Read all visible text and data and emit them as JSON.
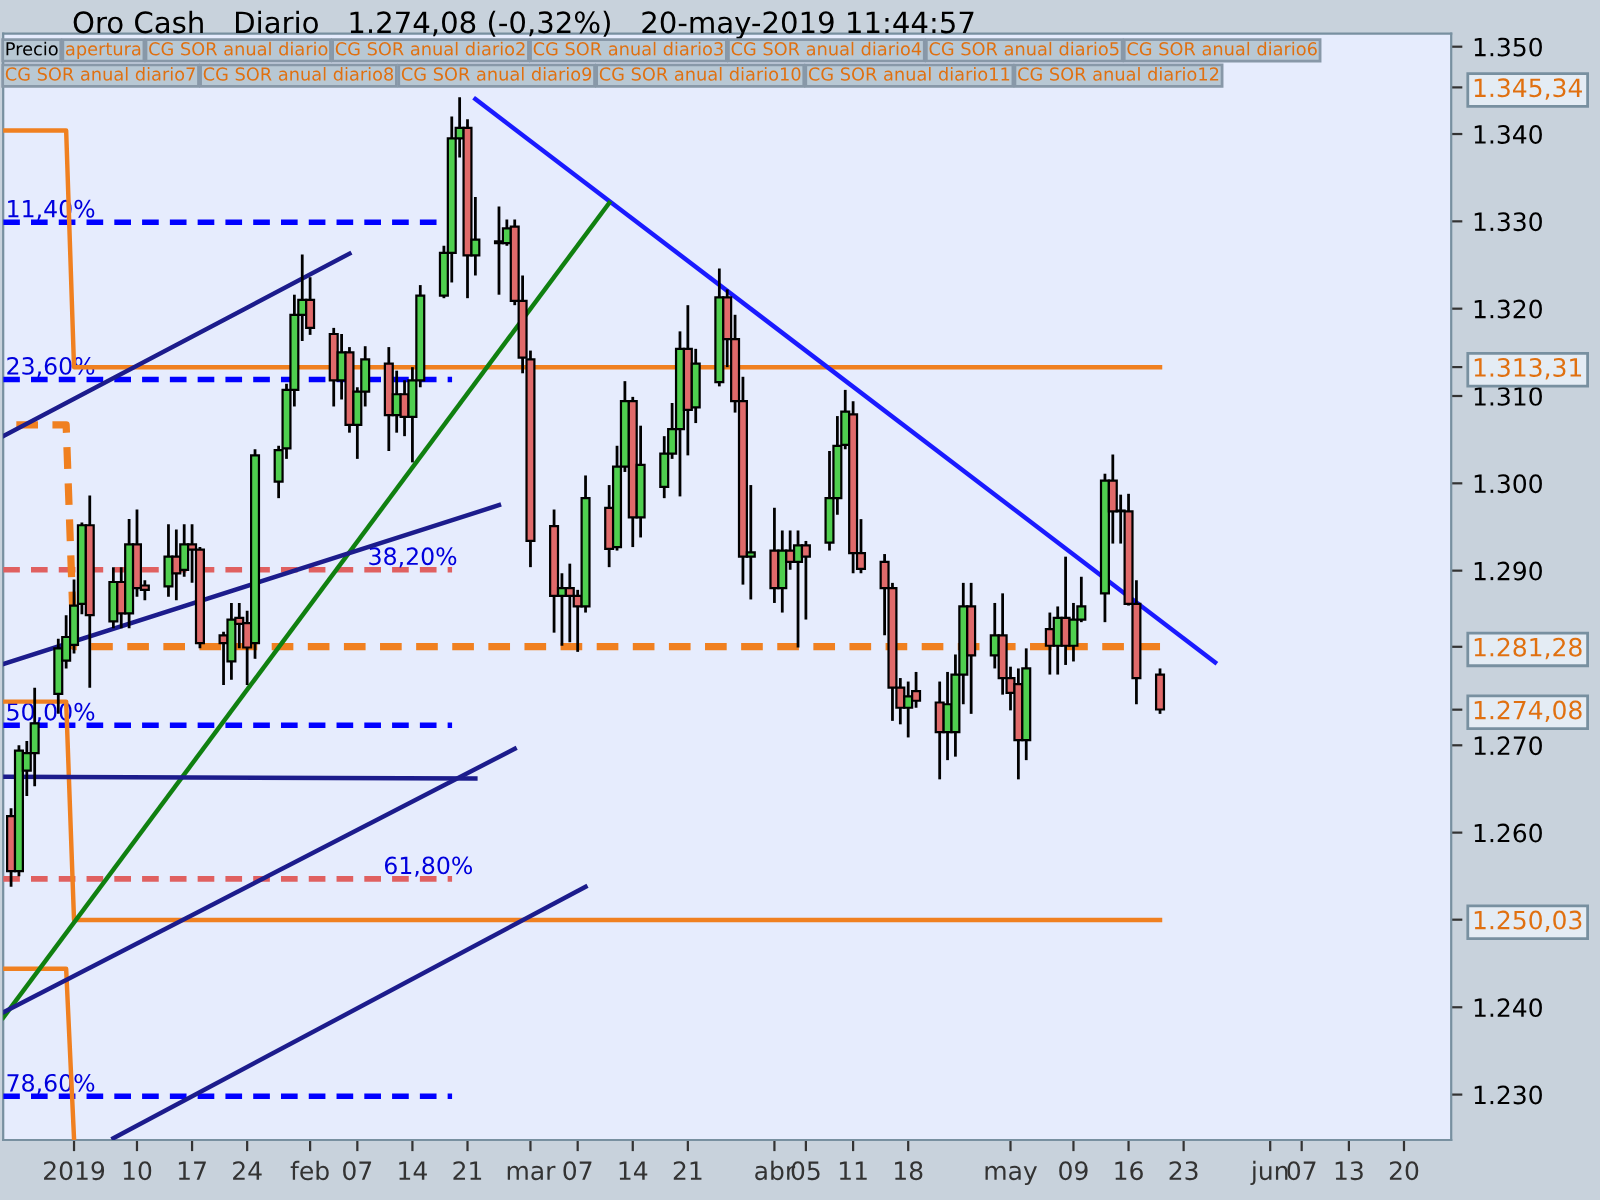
{
  "chart_data": {
    "type": "candlestick",
    "title": "Oro Cash   Diario   1.274,08 (-0,32%)   20-may-2019 11:44:57",
    "annotations": [
      "Precio",
      "apertura",
      "CG SOR anual diario",
      "CG SOR anual diario2",
      "CG SOR anual diario3",
      "CG SOR anual diario4",
      "CG SOR anual diario5",
      "CG SOR anual diario6",
      "CG SOR anual diario7",
      "CG SOR anual diario8",
      "CG SOR anual diario9",
      "CG SOR anual diario10",
      "CG SOR anual diario11",
      "CG SOR anual diario12",
      {
        "text": "11,40%",
        "x": "2018-12-24",
        "y": 1329.9
      },
      {
        "text": "23,60%",
        "x": "2018-12-24",
        "y": 1311.9
      },
      {
        "text": "38,20%",
        "x": "2019-02-08",
        "y": 1290.1
      },
      {
        "text": "50,00%",
        "x": "2018-12-24",
        "y": 1272.3
      },
      {
        "text": "61,80%",
        "x": "2019-02-10",
        "y": 1254.7
      },
      {
        "text": "78,60%",
        "x": "2018-12-24",
        "y": 1229.8
      }
    ],
    "xlim": [
      "2018-12-24",
      "2019-06-26"
    ],
    "xticks": [
      {
        "value": "2019-01-02",
        "label": "2019"
      },
      {
        "value": "2019-01-10",
        "label": "10"
      },
      {
        "value": "2019-01-17",
        "label": "17"
      },
      {
        "value": "2019-01-24",
        "label": "24"
      },
      {
        "value": "2019-02-01",
        "label": "feb"
      },
      {
        "value": "2019-02-07",
        "label": "07"
      },
      {
        "value": "2019-02-14",
        "label": "14"
      },
      {
        "value": "2019-02-21",
        "label": "21"
      },
      {
        "value": "2019-03-01",
        "label": "mar"
      },
      {
        "value": "2019-03-07",
        "label": "07"
      },
      {
        "value": "2019-03-14",
        "label": "14"
      },
      {
        "value": "2019-03-21",
        "label": "21"
      },
      {
        "value": "2019-04-01",
        "label": "abr"
      },
      {
        "value": "2019-04-05",
        "label": "05"
      },
      {
        "value": "2019-04-11",
        "label": "11"
      },
      {
        "value": "2019-04-18",
        "label": "18"
      },
      {
        "value": "2019-05-01",
        "label": "may"
      },
      {
        "value": "2019-05-09",
        "label": "09"
      },
      {
        "value": "2019-05-16",
        "label": "16"
      },
      {
        "value": "2019-05-23",
        "label": "23"
      },
      {
        "value": "2019-06-03",
        "label": "jun"
      },
      {
        "value": "2019-06-07",
        "label": "07"
      },
      {
        "value": "2019-06-13",
        "label": "13"
      },
      {
        "value": "2019-06-20",
        "label": "20"
      }
    ],
    "ylim": [
      1224.8,
      1351.5
    ],
    "yticks": [
      {
        "value": 1230,
        "label": "1.230"
      },
      {
        "value": 1240,
        "label": "1.240"
      },
      {
        "value": 1250.03,
        "label": "1.250,03"
      },
      {
        "value": 1260,
        "label": "1.260"
      },
      {
        "value": 1270,
        "label": "1.270"
      },
      {
        "value": 1274.08,
        "label": "1.274,08"
      },
      {
        "value": 1281.28,
        "label": "1.281,28"
      },
      {
        "value": 1290,
        "label": "1.290"
      },
      {
        "value": 1300,
        "label": "1.300"
      },
      {
        "value": 1310,
        "label": "1.310"
      },
      {
        "value": 1313.31,
        "label": "1.313,31"
      },
      {
        "value": 1320,
        "label": "1.320"
      },
      {
        "value": 1330,
        "label": "1.330"
      },
      {
        "value": 1340,
        "label": "1.340"
      },
      {
        "value": 1345.34,
        "label": "1.345,34"
      },
      {
        "value": 1350,
        "label": "1.350"
      }
    ],
    "ref_lines": [
      {
        "axis": "y",
        "value": 1329.9,
        "color": "#0000ff",
        "line_style": "dashed"
      },
      {
        "axis": "y",
        "value": 1311.9,
        "color": "#0000ff",
        "line_style": "dashed"
      },
      {
        "axis": "y",
        "value": 1290.1,
        "color": "#e06060",
        "line_style": "dashed"
      },
      {
        "axis": "y",
        "value": 1272.3,
        "color": "#0000ff",
        "line_style": "dashed"
      },
      {
        "axis": "y",
        "value": 1254.7,
        "color": "#e06060",
        "line_style": "dashed"
      },
      {
        "axis": "y",
        "value": 1229.8,
        "color": "#0000ff",
        "line_style": "dashed"
      }
    ],
    "series": [
      {
        "x": [
          "2018-12-25",
          "2018-12-26",
          "2018-12-27",
          "2018-12-28",
          "2018-12-31",
          "2019-01-01",
          "2019-01-02",
          "2019-01-03",
          "2019-01-04",
          "2019-01-07",
          "2019-01-08",
          "2019-01-09",
          "2019-01-10",
          "2019-01-11",
          "2019-01-14",
          "2019-01-15",
          "2019-01-16",
          "2019-01-17",
          "2019-01-18",
          "2019-01-21",
          "2019-01-22",
          "2019-01-23",
          "2019-01-24",
          "2019-01-25",
          "2019-01-28",
          "2019-01-29",
          "2019-01-30",
          "2019-01-31",
          "2019-02-01",
          "2019-02-04",
          "2019-02-05",
          "2019-02-06",
          "2019-02-07",
          "2019-02-08",
          "2019-02-11",
          "2019-02-12",
          "2019-02-13",
          "2019-02-14",
          "2019-02-15",
          "2019-02-18",
          "2019-02-19",
          "2019-02-20",
          "2019-02-21",
          "2019-02-22",
          "2019-02-25",
          "2019-02-26",
          "2019-02-27",
          "2019-02-28",
          "2019-03-01",
          "2019-03-04",
          "2019-03-05",
          "2019-03-06",
          "2019-03-07",
          "2019-03-08",
          "2019-03-11",
          "2019-03-12",
          "2019-03-13",
          "2019-03-14",
          "2019-03-15",
          "2019-03-18",
          "2019-03-19",
          "2019-03-20",
          "2019-03-21",
          "2019-03-22",
          "2019-03-25",
          "2019-03-26",
          "2019-03-27",
          "2019-03-28",
          "2019-03-29",
          "2019-04-01",
          "2019-04-02",
          "2019-04-03",
          "2019-04-04",
          "2019-04-05",
          "2019-04-08",
          "2019-04-09",
          "2019-04-10",
          "2019-04-11",
          "2019-04-12",
          "2019-04-15",
          "2019-04-16",
          "2019-04-17",
          "2019-04-18",
          "2019-04-19",
          "2019-04-22",
          "2019-04-23",
          "2019-04-24",
          "2019-04-25",
          "2019-04-26",
          "2019-04-29",
          "2019-04-30",
          "2019-05-01",
          "2019-05-02",
          "2019-05-03",
          "2019-05-06",
          "2019-05-07",
          "2019-05-08",
          "2019-05-09",
          "2019-05-10",
          "2019-05-13",
          "2019-05-14",
          "2019-05-15",
          "2019-05-16",
          "2019-05-17",
          "2019-05-20"
        ],
        "ohlc": [
          [
            1261.9,
            1262.8,
            1253.8,
            1255.6
          ],
          [
            1255.6,
            1270.0,
            1255.0,
            1269.4
          ],
          [
            1267.1,
            1270.5,
            1264.2,
            1269.1
          ],
          [
            1269.1,
            1276.6,
            1265.3,
            1272.5
          ],
          [
            1275.9,
            1282.2,
            1273.6,
            1281.1
          ],
          [
            1279.7,
            1284.9,
            1278.8,
            1282.4
          ],
          [
            1281.5,
            1289.0,
            1280.5,
            1286.0
          ],
          [
            1286.2,
            1295.5,
            1285.0,
            1295.2
          ],
          [
            1295.2,
            1298.6,
            1276.6,
            1284.9
          ],
          [
            1284.2,
            1290.4,
            1283.4,
            1288.7
          ],
          [
            1288.7,
            1290.4,
            1283.4,
            1285.1
          ],
          [
            1285.1,
            1295.9,
            1283.4,
            1293.0
          ],
          [
            1293.0,
            1297.0,
            1287.0,
            1288.0
          ],
          [
            1288.3,
            1288.9,
            1286.6,
            1287.8
          ],
          [
            1288.2,
            1295.3,
            1287.0,
            1291.6
          ],
          [
            1291.6,
            1294.7,
            1286.6,
            1289.7
          ],
          [
            1290.1,
            1295.3,
            1289.3,
            1293.0
          ],
          [
            1293.0,
            1295.3,
            1288.6,
            1292.4
          ],
          [
            1292.4,
            1292.7,
            1281.1,
            1281.7
          ],
          [
            1282.6,
            1283.0,
            1276.9,
            1281.7
          ],
          [
            1279.6,
            1286.3,
            1277.5,
            1284.4
          ],
          [
            1284.6,
            1286.3,
            1281.1,
            1283.9
          ],
          [
            1284.0,
            1285.4,
            1276.9,
            1281.2
          ],
          [
            1281.7,
            1303.9,
            1279.9,
            1303.2
          ],
          [
            1300.2,
            1304.3,
            1298.3,
            1303.8
          ],
          [
            1304.0,
            1311.4,
            1302.8,
            1310.7
          ],
          [
            1310.7,
            1321.6,
            1308.8,
            1319.3
          ],
          [
            1319.3,
            1326.2,
            1316.3,
            1321.0
          ],
          [
            1321.0,
            1323.6,
            1317.0,
            1317.8
          ],
          [
            1317.1,
            1317.8,
            1308.8,
            1311.8
          ],
          [
            1311.8,
            1317.1,
            1309.6,
            1315.0
          ],
          [
            1315.0,
            1315.6,
            1305.8,
            1306.7
          ],
          [
            1306.7,
            1311.0,
            1302.8,
            1310.5
          ],
          [
            1310.5,
            1315.7,
            1308.8,
            1314.2
          ],
          [
            1313.7,
            1315.6,
            1303.7,
            1307.8
          ],
          [
            1307.8,
            1312.9,
            1305.8,
            1310.2
          ],
          [
            1310.2,
            1311.8,
            1305.4,
            1307.6
          ],
          [
            1307.6,
            1313.3,
            1302.4,
            1311.8
          ],
          [
            1311.8,
            1322.7,
            1311.0,
            1321.5
          ],
          [
            1321.5,
            1327.2,
            1321.2,
            1326.4
          ],
          [
            1326.4,
            1342.0,
            1323.0,
            1339.5
          ],
          [
            1339.5,
            1344.2,
            1337.3,
            1340.7
          ],
          [
            1340.7,
            1341.7,
            1321.2,
            1326.1
          ],
          [
            1326.1,
            1332.8,
            1323.8,
            1327.9
          ],
          [
            1327.7,
            1331.7,
            1321.6,
            1327.5
          ],
          [
            1327.5,
            1330.2,
            1327.2,
            1329.2
          ],
          [
            1329.4,
            1330.2,
            1320.4,
            1320.9
          ],
          [
            1320.9,
            1323.8,
            1312.6,
            1314.4
          ],
          [
            1314.2,
            1315.2,
            1290.4,
            1293.4
          ],
          [
            1295.1,
            1297.0,
            1282.9,
            1287.1
          ],
          [
            1287.1,
            1289.7,
            1281.4,
            1288.0
          ],
          [
            1288.0,
            1290.8,
            1281.8,
            1287.1
          ],
          [
            1287.1,
            1287.8,
            1280.7,
            1285.9
          ],
          [
            1285.9,
            1300.9,
            1285.2,
            1298.3
          ],
          [
            1297.2,
            1299.8,
            1290.4,
            1292.5
          ],
          [
            1292.7,
            1304.3,
            1292.3,
            1301.9
          ],
          [
            1301.9,
            1311.7,
            1301.3,
            1309.4
          ],
          [
            1309.4,
            1309.9,
            1292.7,
            1296.1
          ],
          [
            1296.1,
            1306.6,
            1293.8,
            1302.1
          ],
          [
            1299.6,
            1305.4,
            1298.3,
            1303.4
          ],
          [
            1303.4,
            1309.2,
            1302.8,
            1306.2
          ],
          [
            1306.2,
            1317.4,
            1298.5,
            1315.4
          ],
          [
            1315.4,
            1320.4,
            1303.2,
            1308.4
          ],
          [
            1308.7,
            1315.4,
            1306.9,
            1313.7
          ],
          [
            1311.6,
            1324.6,
            1311.1,
            1321.3
          ],
          [
            1321.3,
            1322.2,
            1313.3,
            1316.5
          ],
          [
            1316.5,
            1319.3,
            1308.1,
            1309.4
          ],
          [
            1309.4,
            1312.2,
            1288.4,
            1291.6
          ],
          [
            1291.6,
            1299.8,
            1286.7,
            1292.1
          ],
          [
            1292.3,
            1297.2,
            1286.3,
            1288.0
          ],
          [
            1288.0,
            1294.6,
            1285.2,
            1292.3
          ],
          [
            1292.3,
            1294.6,
            1290.1,
            1291.0
          ],
          [
            1291.0,
            1294.6,
            1281.2,
            1292.9
          ],
          [
            1292.9,
            1293.4,
            1284.4,
            1291.6
          ],
          [
            1293.2,
            1303.7,
            1292.3,
            1298.3
          ],
          [
            1298.3,
            1307.7,
            1296.4,
            1304.3
          ],
          [
            1304.4,
            1310.7,
            1303.9,
            1308.2
          ],
          [
            1307.9,
            1309.4,
            1289.7,
            1292.0
          ],
          [
            1292.0,
            1295.9,
            1289.7,
            1290.2
          ],
          [
            1291.0,
            1291.9,
            1282.6,
            1288.0
          ],
          [
            1288.0,
            1288.6,
            1272.8,
            1276.6
          ],
          [
            1276.6,
            1277.7,
            1272.4,
            1274.3
          ],
          [
            1274.3,
            1277.3,
            1270.9,
            1275.6
          ],
          [
            1276.2,
            1278.4,
            1274.3,
            1275.1
          ],
          [
            1274.9,
            1277.3,
            1266.1,
            1271.5
          ],
          [
            1271.5,
            1278.4,
            1268.3,
            1274.7
          ],
          [
            1271.5,
            1280.4,
            1268.7,
            1278.1
          ],
          [
            1278.1,
            1288.6,
            1274.7,
            1285.9
          ],
          [
            1285.9,
            1288.6,
            1273.6,
            1280.3
          ],
          [
            1280.3,
            1286.3,
            1278.8,
            1282.6
          ],
          [
            1282.6,
            1287.4,
            1275.8,
            1277.7
          ],
          [
            1277.7,
            1279.0,
            1274.0,
            1276.0
          ],
          [
            1277.0,
            1278.8,
            1266.1,
            1270.6
          ],
          [
            1270.6,
            1281.1,
            1268.3,
            1278.8
          ],
          [
            1283.3,
            1285.2,
            1278.1,
            1281.4
          ],
          [
            1281.4,
            1285.9,
            1278.1,
            1284.6
          ],
          [
            1284.6,
            1291.6,
            1279.2,
            1281.4
          ],
          [
            1281.4,
            1286.3,
            1279.6,
            1284.4
          ],
          [
            1284.4,
            1289.3,
            1284.1,
            1285.9
          ],
          [
            1287.4,
            1301.1,
            1284.1,
            1300.3
          ],
          [
            1300.3,
            1303.3,
            1293.1,
            1296.8
          ],
          [
            1296.8,
            1298.7,
            1293.1,
            1296.8
          ],
          [
            1296.8,
            1298.8,
            1286.0,
            1286.2
          ],
          [
            1286.2,
            1288.9,
            1274.7,
            1277.7
          ],
          [
            1278.1,
            1278.8,
            1273.6,
            1274.1
          ]
        ]
      },
      {
        "type": "line",
        "color": "#f08020",
        "line_style": "solid",
        "x": [
          "2018-12-24",
          "2019-01-01",
          "2019-01-02",
          "2019-05-20"
        ],
        "values": [
          1340.4,
          1340.4,
          1313.3,
          1313.3
        ]
      },
      {
        "type": "line",
        "color": "#f08020",
        "line_style": "solid",
        "x": [
          "2018-12-24",
          "2019-01-01",
          "2019-01-02",
          "2019-05-20"
        ],
        "values": [
          1275.0,
          1275.0,
          1250.0,
          1250.0
        ]
      },
      {
        "type": "line",
        "color": "#f08020",
        "line_style": "dashed",
        "x": [
          "2018-12-24",
          "2019-01-01",
          "2019-01-02",
          "2019-05-20"
        ],
        "values": [
          1306.7,
          1306.7,
          1281.3,
          1281.3
        ]
      },
      {
        "type": "line",
        "color": "#f08020",
        "line_style": "solid",
        "x": [
          "2018-12-24",
          "2019-01-01",
          "2019-01-02"
        ],
        "values": [
          1244.4,
          1244.4,
          1225.0
        ]
      },
      {
        "type": "line",
        "color": "#1a1aff",
        "line_style": "solid",
        "x": [
          "2019-02-22",
          "2019-05-27"
        ],
        "values": [
          1344.0,
          1279.5
        ]
      },
      {
        "type": "line",
        "color": "#108010",
        "line_style": "solid",
        "x": [
          "2018-12-24",
          "2019-03-11"
        ],
        "values": [
          1238.8,
          1332.1
        ]
      },
      {
        "type": "line",
        "color": "#1c1c8c",
        "line_style": "solid",
        "x": [
          "2018-12-24",
          "2019-02-06"
        ],
        "values": [
          1305.4,
          1326.3
        ]
      },
      {
        "type": "line",
        "color": "#1c1c8c",
        "line_style": "solid",
        "x": [
          "2018-12-24",
          "2019-02-25"
        ],
        "values": [
          1279.3,
          1297.5
        ]
      },
      {
        "type": "line",
        "color": "#1c1c8c",
        "line_style": "solid",
        "x": [
          "2018-12-24",
          "2019-02-27"
        ],
        "values": [
          1239.4,
          1269.6
        ]
      },
      {
        "type": "line",
        "color": "#1c1c8c",
        "line_style": "solid",
        "x": [
          "2019-01-07",
          "2019-03-08"
        ],
        "values": [
          1225.0,
          1253.8
        ]
      },
      {
        "type": "line",
        "color": "#1c1c8c",
        "line_style": "solid",
        "x": [
          "2018-12-24",
          "2019-02-22"
        ],
        "values": [
          1266.4,
          1266.2
        ]
      }
    ]
  }
}
